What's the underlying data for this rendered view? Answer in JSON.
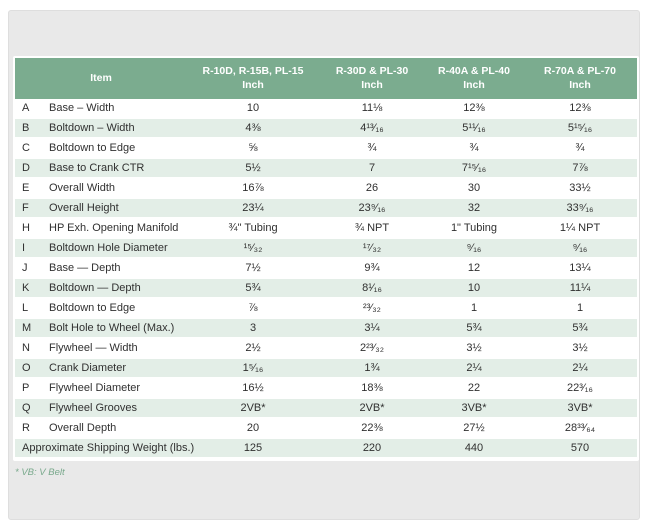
{
  "table": {
    "item_header": "Item",
    "columns": [
      {
        "line1": "R-10D, R-15B, PL-15",
        "line2": "Inch"
      },
      {
        "line1": "R-30D & PL-30",
        "line2": "Inch"
      },
      {
        "line1": "R-40A & PL-40",
        "line2": "Inch"
      },
      {
        "line1": "R-70A & PL-70",
        "line2": "Inch"
      }
    ],
    "rows": [
      {
        "letter": "A",
        "item": "Base – Width",
        "values": [
          "10",
          "11⅛",
          "12⅜",
          "12⅜"
        ]
      },
      {
        "letter": "B",
        "item": "Boltdown – Width",
        "values": [
          "4⅜",
          "4¹³⁄₁₆",
          "5¹¹⁄₁₆",
          "5¹⁵⁄₁₆"
        ]
      },
      {
        "letter": "C",
        "item": "Boltdown to Edge",
        "values": [
          "⅝",
          "¾",
          "¾",
          "¾"
        ]
      },
      {
        "letter": "D",
        "item": "Base to Crank CTR",
        "values": [
          "5½",
          "7",
          "7¹⁵⁄₁₆",
          "7⅞"
        ]
      },
      {
        "letter": "E",
        "item": "Overall Width",
        "values": [
          "16⅞",
          "26",
          "30",
          "33½"
        ]
      },
      {
        "letter": "F",
        "item": "Overall Height",
        "values": [
          "23¼",
          "23⁹⁄₁₆",
          "32",
          "33⁹⁄₁₆"
        ]
      },
      {
        "letter": "H",
        "item": "HP Exh. Opening Manifold",
        "values": [
          "¾\" Tubing",
          "¾ NPT",
          "1\" Tubing",
          "1¼ NPT"
        ]
      },
      {
        "letter": "I",
        "item": "Boltdown Hole Diameter",
        "values": [
          "¹⁵⁄₃₂",
          "¹⁷⁄₃₂",
          "⁹⁄₁₆",
          "⁹⁄₁₆"
        ]
      },
      {
        "letter": "J",
        "item": "Base — Depth",
        "values": [
          "7½",
          "9¾",
          "12",
          "13¼"
        ]
      },
      {
        "letter": "K",
        "item": "Boltdown — Depth",
        "values": [
          "5¾",
          "8¹⁄₁₆",
          "10",
          "11¼"
        ]
      },
      {
        "letter": "L",
        "item": "Boltdown to Edge",
        "values": [
          "⅞",
          "²³⁄₃₂",
          "1",
          "1"
        ]
      },
      {
        "letter": "M",
        "item": "Bolt Hole to Wheel (Max.)",
        "values": [
          "3",
          "3¼",
          "5¾",
          "5¾"
        ]
      },
      {
        "letter": "N",
        "item": "Flywheel — Width",
        "values": [
          "2½",
          "2²³⁄₃₂",
          "3½",
          "3½"
        ]
      },
      {
        "letter": "O",
        "item": "Crank Diameter",
        "values": [
          "1⁵⁄₁₆",
          "1¾",
          "2¼",
          "2¼"
        ]
      },
      {
        "letter": "P",
        "item": "Flywheel Diameter",
        "values": [
          "16½",
          "18⅜",
          "22",
          "22³⁄₁₆"
        ]
      },
      {
        "letter": "Q",
        "item": "Flywheel Grooves",
        "values": [
          "2VB*",
          "2VB*",
          "3VB*",
          "3VB*"
        ]
      },
      {
        "letter": "R",
        "item": "Overall Depth",
        "values": [
          "20",
          "22⅜",
          "27½",
          "28³³⁄₆₄"
        ]
      }
    ],
    "footer_row": {
      "label": "Approximate Shipping Weight (lbs.)",
      "values": [
        "125",
        "220",
        "440",
        "570"
      ]
    },
    "footnote": "* VB: V Belt"
  },
  "colors": {
    "header_green": "#7bac8f",
    "stripe_green": "#e3eee7",
    "panel_gray": "#e9e9e9",
    "body_text": "#303030",
    "footnote_green": "#79a98c"
  }
}
